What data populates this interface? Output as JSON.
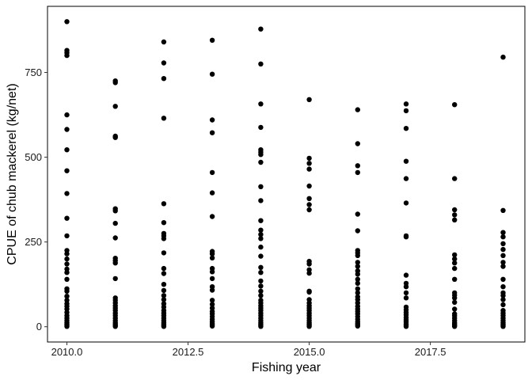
{
  "chart_data": {
    "type": "scatter",
    "title": "",
    "xlabel": "Fishing year",
    "ylabel": "CPUE of chub mackerel (kg/net)",
    "xlim": [
      2009.6,
      2019.45
    ],
    "ylim": [
      -45,
      945
    ],
    "x_ticks": [
      2010.0,
      2012.5,
      2015.0,
      2017.5
    ],
    "x_tick_labels": [
      "2010.0",
      "2012.5",
      "2015.0",
      "2017.5"
    ],
    "y_ticks": [
      0,
      250,
      500,
      750
    ],
    "y_tick_labels": [
      "0",
      "250",
      "500",
      "750"
    ],
    "grid": false,
    "legend": "none",
    "point_color": "#000000",
    "series": [
      {
        "x": 2010,
        "values": [
          900,
          815,
          808,
          800,
          625,
          582,
          522,
          460,
          393,
          320,
          268,
          225,
          215,
          200,
          185,
          170,
          160,
          140,
          112,
          105,
          90,
          78,
          68,
          60,
          52,
          42,
          33,
          25,
          18,
          12,
          8,
          4,
          1
        ]
      },
      {
        "x": 2011,
        "values": [
          725,
          720,
          650,
          562,
          558,
          348,
          342,
          305,
          262,
          202,
          195,
          188,
          142,
          85,
          78,
          70,
          62,
          55,
          48,
          40,
          33,
          25,
          18,
          12,
          8,
          4,
          1
        ]
      },
      {
        "x": 2012,
        "values": [
          840,
          778,
          732,
          615,
          363,
          307,
          275,
          268,
          260,
          218,
          172,
          157,
          125,
          107,
          92,
          80,
          68,
          58,
          48,
          40,
          33,
          25,
          18,
          12,
          8,
          4,
          1
        ]
      },
      {
        "x": 2013,
        "values": [
          845,
          745,
          610,
          572,
          455,
          395,
          325,
          222,
          215,
          203,
          172,
          162,
          142,
          118,
          108,
          78,
          66,
          55,
          45,
          38,
          30,
          22,
          15,
          10,
          6,
          2
        ]
      },
      {
        "x": 2014,
        "values": [
          878,
          775,
          657,
          588,
          522,
          515,
          508,
          485,
          413,
          372,
          313,
          285,
          272,
          260,
          235,
          208,
          175,
          160,
          135,
          120,
          105,
          92,
          78,
          70,
          62,
          55,
          48,
          40,
          33,
          25,
          18,
          12,
          8,
          4,
          1
        ]
      },
      {
        "x": 2015,
        "values": [
          670,
          497,
          482,
          465,
          415,
          378,
          360,
          345,
          193,
          185,
          168,
          158,
          105,
          102,
          80,
          70,
          62,
          55,
          48,
          40,
          33,
          25,
          18,
          12,
          8,
          4,
          1
        ]
      },
      {
        "x": 2016,
        "values": [
          640,
          540,
          475,
          455,
          332,
          283,
          225,
          218,
          210,
          190,
          178,
          165,
          155,
          140,
          128,
          112,
          100,
          88,
          80,
          70,
          60,
          52,
          45,
          38,
          30,
          22,
          15,
          10,
          6,
          2
        ]
      },
      {
        "x": 2017,
        "values": [
          657,
          637,
          585,
          488,
          437,
          365,
          268,
          265,
          152,
          128,
          118,
          100,
          85,
          58,
          50,
          42,
          35,
          27,
          20,
          14,
          8,
          4,
          1
        ]
      },
      {
        "x": 2018,
        "values": [
          655,
          437,
          345,
          330,
          315,
          212,
          200,
          188,
          172,
          140,
          100,
          93,
          85,
          72,
          52,
          38,
          32,
          25,
          18,
          12,
          8,
          4,
          1
        ]
      },
      {
        "x": 2019,
        "values": [
          795,
          343,
          278,
          265,
          245,
          228,
          210,
          190,
          178,
          140,
          118,
          100,
          92,
          80,
          65,
          48,
          40,
          33,
          25,
          18,
          12,
          8,
          4,
          1
        ]
      }
    ]
  }
}
